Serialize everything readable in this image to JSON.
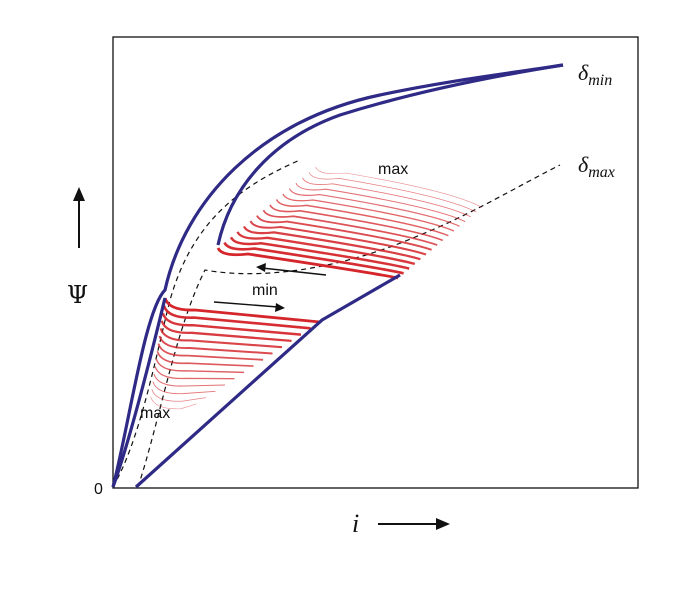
{
  "diagram": {
    "y_axis_symbol": "Ψ",
    "x_axis_symbol": "i",
    "origin_label": "0",
    "curve_top_label": {
      "base": "δ",
      "sub": "min"
    },
    "curve_bottom_label": {
      "base": "δ",
      "sub": "max"
    },
    "loop_label_upper": "max",
    "loop_label_lower_min": "min",
    "loop_label_lower_max": "max"
  },
  "colors": {
    "envelope": "#2e2a86",
    "loops": "#d4262b",
    "dashed": "#111111",
    "frame": "#111111"
  }
}
